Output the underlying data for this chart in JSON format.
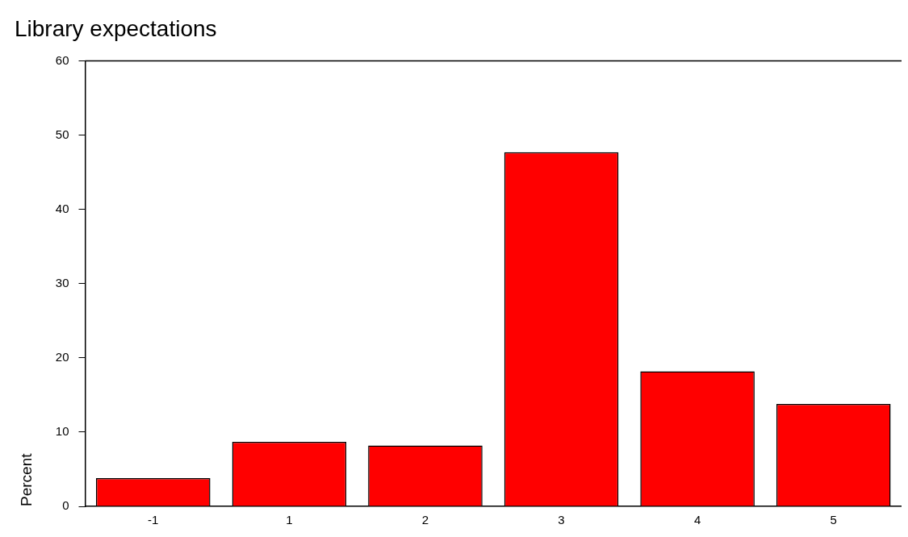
{
  "chart_data": {
    "type": "bar",
    "title": "Library expectations",
    "ylabel": "Percent",
    "categories": [
      "-1",
      "1",
      "2",
      "3",
      "4",
      "5"
    ],
    "values": [
      3.8,
      8.7,
      8.2,
      47.7,
      18.2,
      13.8
    ],
    "color": "#ff0000",
    "ylim": [
      0,
      60
    ],
    "yticks": [
      0,
      10,
      20,
      30,
      40,
      50,
      60
    ],
    "grid": false,
    "legend": false
  }
}
